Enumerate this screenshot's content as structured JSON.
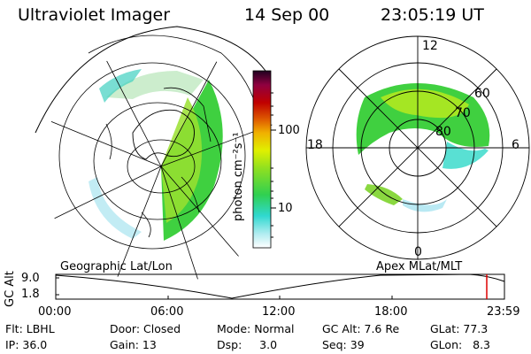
{
  "header": {
    "instrument": "Ultraviolet Imager",
    "date": "14 Sep 00",
    "time": "23:05:19 UT"
  },
  "colorbar": {
    "unit_label": "photon cm⁻²s⁻¹",
    "ticks": [
      "100",
      "10"
    ]
  },
  "polar_plot": {
    "mlt_labels": {
      "top": "12",
      "left": "18",
      "right": "6",
      "bottom": "0"
    },
    "lat_labels": [
      "60",
      "70",
      "80"
    ]
  },
  "timeline": {
    "left_title": "Geographic Lat/Lon",
    "right_title": "Apex  MLat/MLT",
    "axis_label": "GC Alt",
    "y_ticks": [
      "9.0",
      "1.8"
    ],
    "x_ticks": [
      "00:00",
      "06:00",
      "12:00",
      "18:00",
      "23:59"
    ]
  },
  "info_rows": [
    [
      "Flt: LBHL",
      "Door: Closed",
      "Mode: Normal",
      "GC Alt: 7.6 Re",
      "GLat: 77.3"
    ],
    [
      "IP: 36.0",
      "Gain: 13",
      "Dsp:     3.0",
      "Seq: 39",
      "GLon:   8.3"
    ]
  ],
  "colors": {
    "aurora_green": "#33dd33",
    "aurora_yellow": "#c8f000",
    "aurora_cyan": "#40e0e0",
    "marker_red": "#dd0000"
  }
}
